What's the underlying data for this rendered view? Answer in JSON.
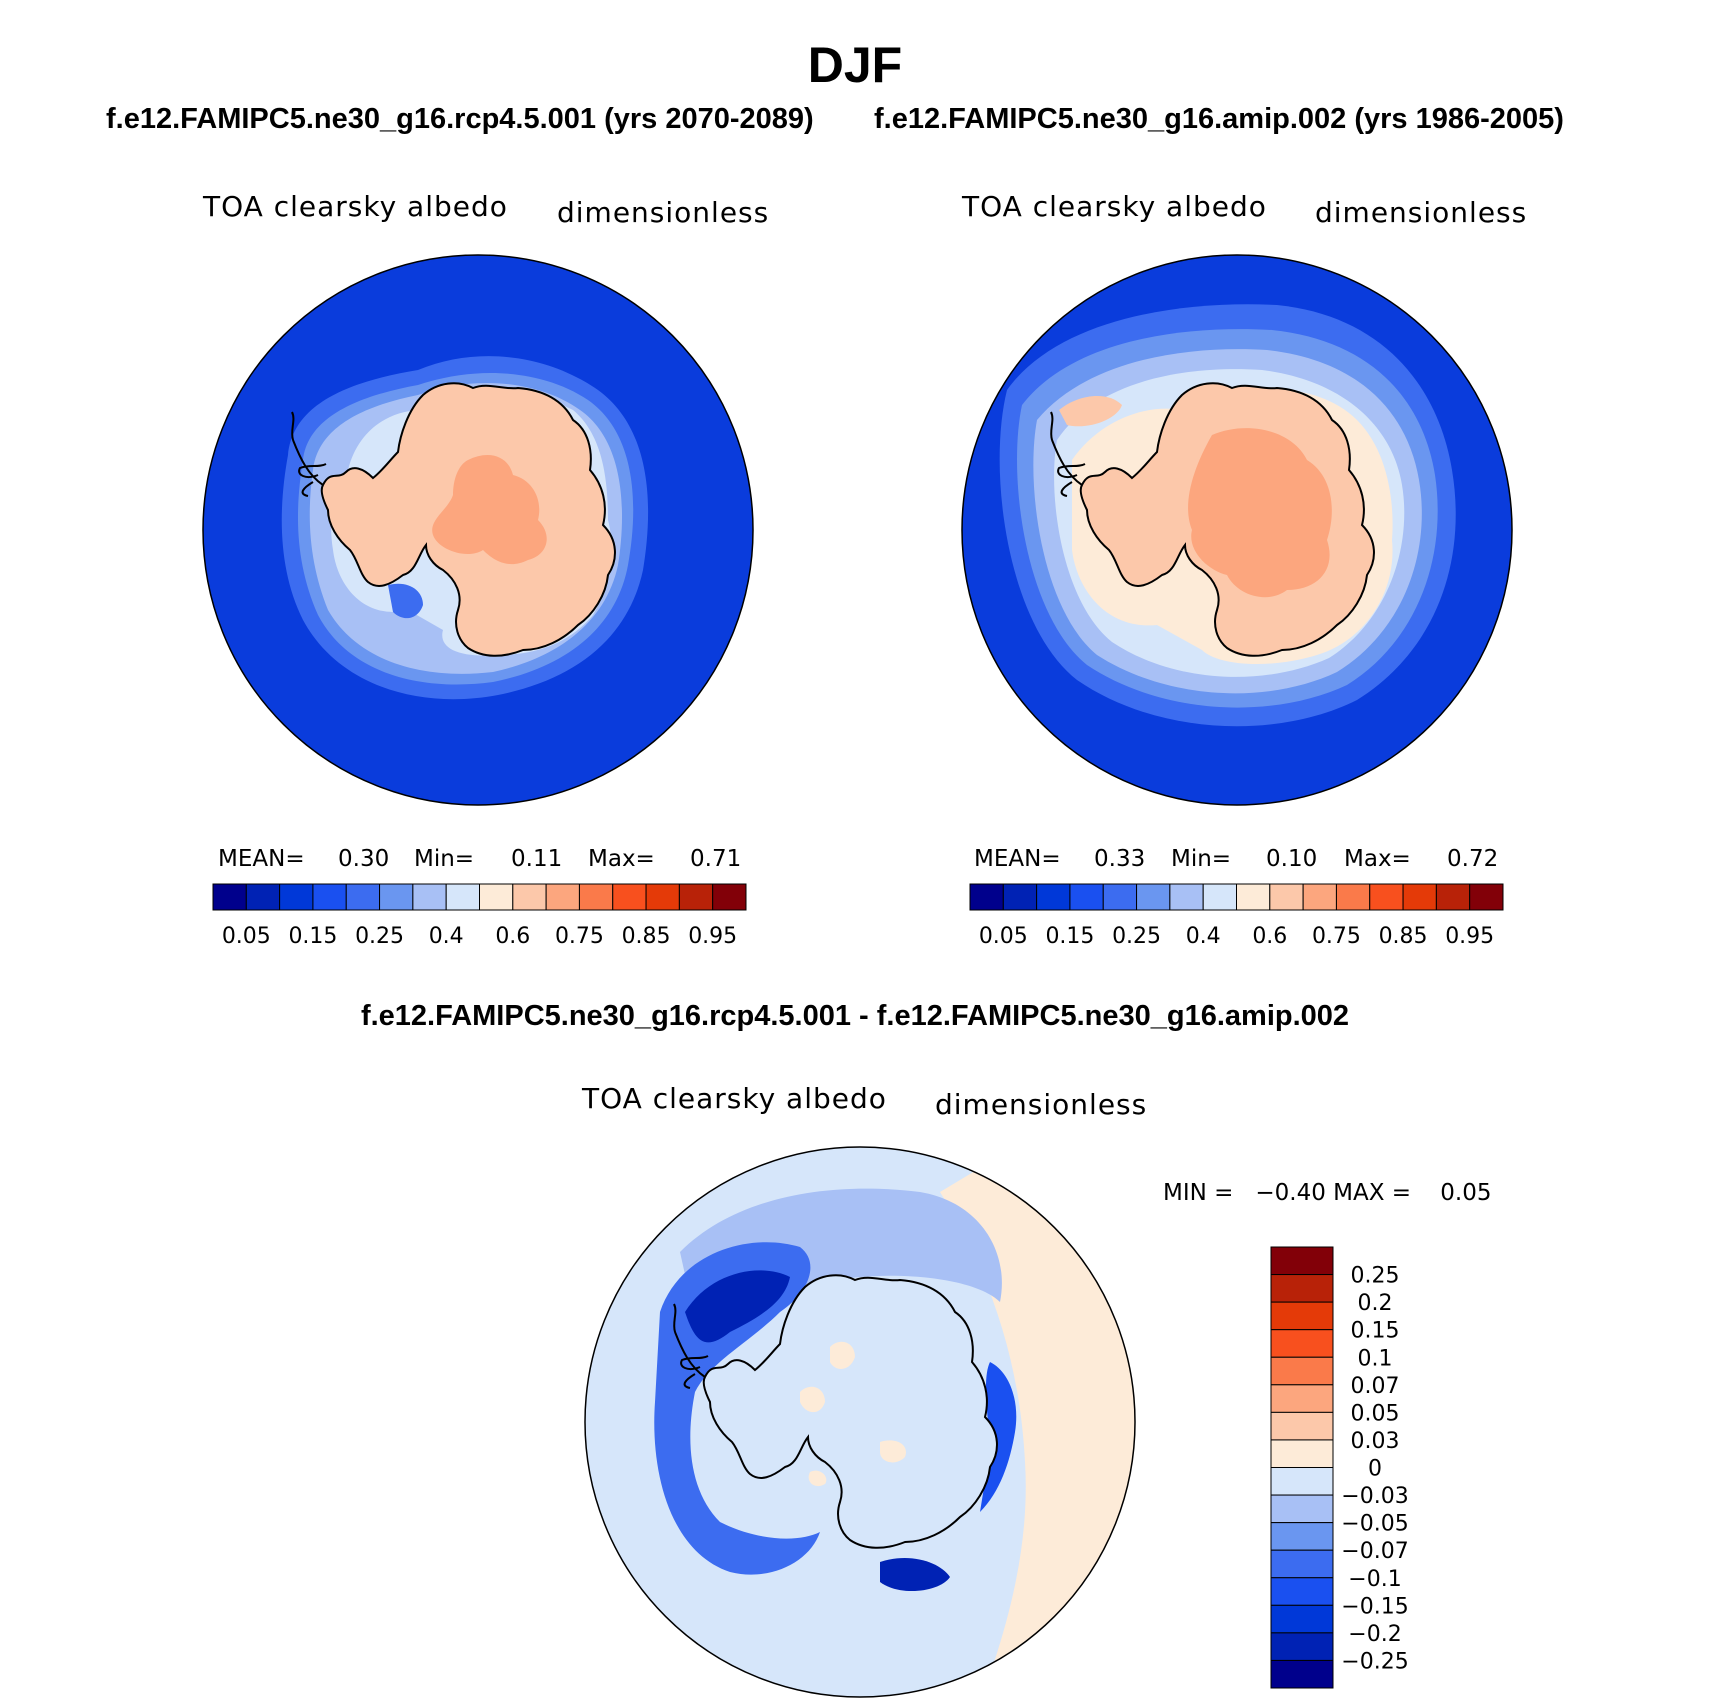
{
  "title": "DJF",
  "top_panels": [
    {
      "case": "f.e12.FAMIPC5.ne30_g16.rcp4.5.001 (yrs 2070-2089)",
      "variable": "TOA clearsky albedo",
      "units": "dimensionless",
      "stats": {
        "mean_label": "MEAN=",
        "mean": "0.30",
        "min_label": "Min=",
        "min": "0.11",
        "max_label": "Max=",
        "max": "0.71"
      }
    },
    {
      "case": "f.e12.FAMIPC5.ne30_g16.amip.002 (yrs 1986-2005)",
      "variable": "TOA clearsky albedo",
      "units": "dimensionless",
      "stats": {
        "mean_label": "MEAN=",
        "mean": "0.33",
        "min_label": "Min=",
        "min": "0.10",
        "max_label": "Max=",
        "max": "0.72"
      }
    }
  ],
  "top_colorbar": {
    "colors": [
      "#00008c",
      "#0022b4",
      "#0038d8",
      "#1a50f0",
      "#3c6cf0",
      "#6a96f0",
      "#a8c0f5",
      "#d6e6fa",
      "#fdebd8",
      "#fcc8aa",
      "#fca67e",
      "#fa7a4a",
      "#f8501e",
      "#e43a08",
      "#b82208",
      "#820008"
    ],
    "tick_labels": [
      "0.05",
      "0.15",
      "0.25",
      "0.4",
      "0.6",
      "0.75",
      "0.85",
      "0.95"
    ]
  },
  "diff_panel": {
    "title": "f.e12.FAMIPC5.ne30_g16.rcp4.5.001 - f.e12.FAMIPC5.ne30_g16.amip.002",
    "variable": "TOA clearsky albedo",
    "units": "dimensionless",
    "minmax": "MIN =   −0.40 MAX =    0.05",
    "colorbar_colors": [
      "#00008c",
      "#0022b4",
      "#0038d8",
      "#1a50f0",
      "#3c6cf0",
      "#6a96f0",
      "#a8c0f5",
      "#d6e6fa",
      "#fdebd8",
      "#fcc8aa",
      "#fca67e",
      "#fa7a4a",
      "#f8501e",
      "#e43a08",
      "#b82208",
      "#820008"
    ],
    "tick_labels": [
      "0.25",
      "0.2",
      "0.15",
      "0.1",
      "0.07",
      "0.05",
      "0.03",
      "0",
      "−0.03",
      "−0.05",
      "−0.07",
      "−0.1",
      "−0.15",
      "−0.2",
      "−0.25"
    ]
  },
  "map_colors": {
    "ocean": "#0a3cdc",
    "ice_band_1": "#3c6cf0",
    "ice_band_2": "#6a96f0",
    "ice_band_3": "#a8c0f5",
    "ice_band_4": "#d6e6fa",
    "land": "#fcc8aa",
    "land_high": "#fca67e",
    "diff_base": "#d6e6fa",
    "diff_warm": "#fdebd8",
    "diff_cool_1": "#a8c0f5",
    "diff_cool_2": "#3c6cf0",
    "diff_cool_3": "#1a50f0",
    "diff_cool_4": "#0022b4"
  }
}
